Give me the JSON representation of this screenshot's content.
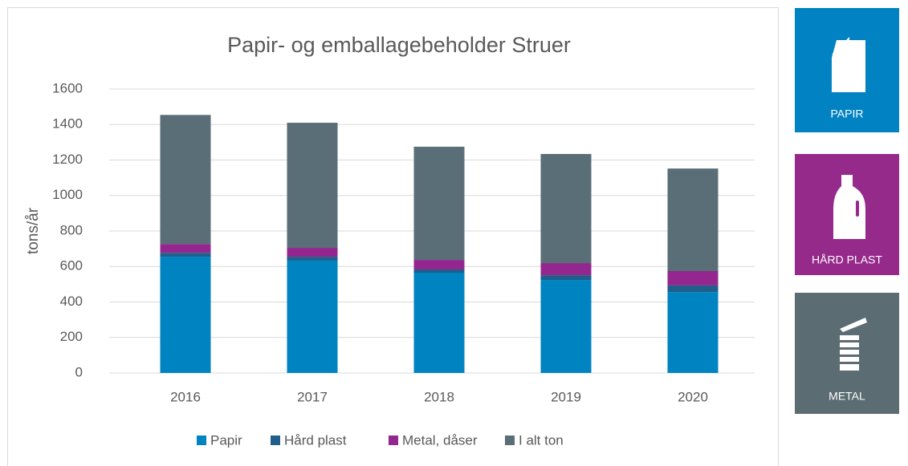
{
  "chart_data": {
    "type": "stacked_bar",
    "title": "Papir- og emballagebeholder Struer",
    "y_label": "tons/år",
    "categories": [
      "2016",
      "2017",
      "2018",
      "2019",
      "2020"
    ],
    "series": [
      {
        "name": "Papir",
        "color": "#0083c1",
        "values": [
          655,
          633,
          565,
          524,
          456
        ]
      },
      {
        "name": "Hård plast",
        "color": "#1f5f8a",
        "values": [
          22,
          22,
          18,
          27,
          37
        ]
      },
      {
        "name": "Metal, dåser",
        "color": "#93278f",
        "values": [
          50,
          50,
          54,
          68,
          81
        ]
      },
      {
        "name": "I alt ton",
        "color": "#5a6e78",
        "values": [
          727,
          705,
          638,
          615,
          578
        ]
      }
    ],
    "ylim": [
      0,
      1600
    ],
    "yticks": [
      0,
      200,
      400,
      600,
      800,
      1000,
      1200,
      1400,
      1600
    ],
    "grid": true,
    "legend": "bottom"
  },
  "panels": [
    {
      "label": "PAPIR"
    },
    {
      "label": "HÅRD PLAST"
    },
    {
      "label": "METAL"
    }
  ]
}
